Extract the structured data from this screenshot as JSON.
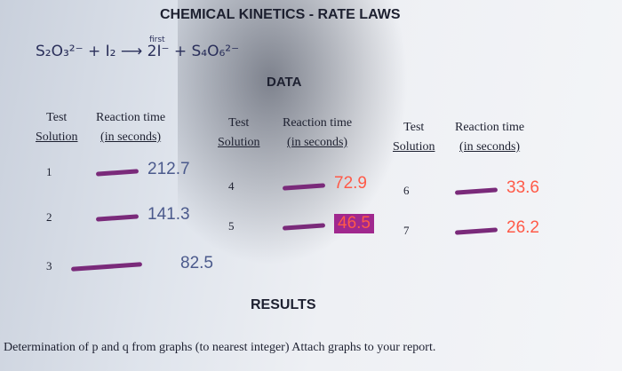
{
  "header": {
    "title": "CHEMICAL KINETICS - RATE LAWS",
    "equation": "S₂O₃²⁻ + I₂ ⟶ 2I⁻ + S₄O₆²⁻",
    "arrow_label": "first"
  },
  "data_heading": "DATA",
  "groups": [
    {
      "test_header": [
        "Test",
        "Solution"
      ],
      "time_header": [
        "Reaction time",
        "(in seconds)"
      ],
      "rows": [
        {
          "test": "1",
          "time": "212.7"
        },
        {
          "test": "2",
          "time": "141.3"
        },
        {
          "test": "3",
          "time": "82.5"
        }
      ]
    },
    {
      "test_header": [
        "Test",
        "Solution"
      ],
      "time_header": [
        "Reaction time",
        "(in seconds)"
      ],
      "rows": [
        {
          "test": "4",
          "time": "72.9"
        },
        {
          "test": "5",
          "time": "46.5"
        }
      ]
    },
    {
      "test_header": [
        "Test",
        "Solution"
      ],
      "time_header": [
        "Reaction time",
        "(in seconds)"
      ],
      "rows": [
        {
          "test": "6",
          "time": "33.6"
        },
        {
          "test": "7",
          "time": "26.2"
        }
      ]
    }
  ],
  "results_heading": "RESULTS",
  "results_line": "Determination of p and q from graphs (to nearest integer)  Attach graphs to your report."
}
